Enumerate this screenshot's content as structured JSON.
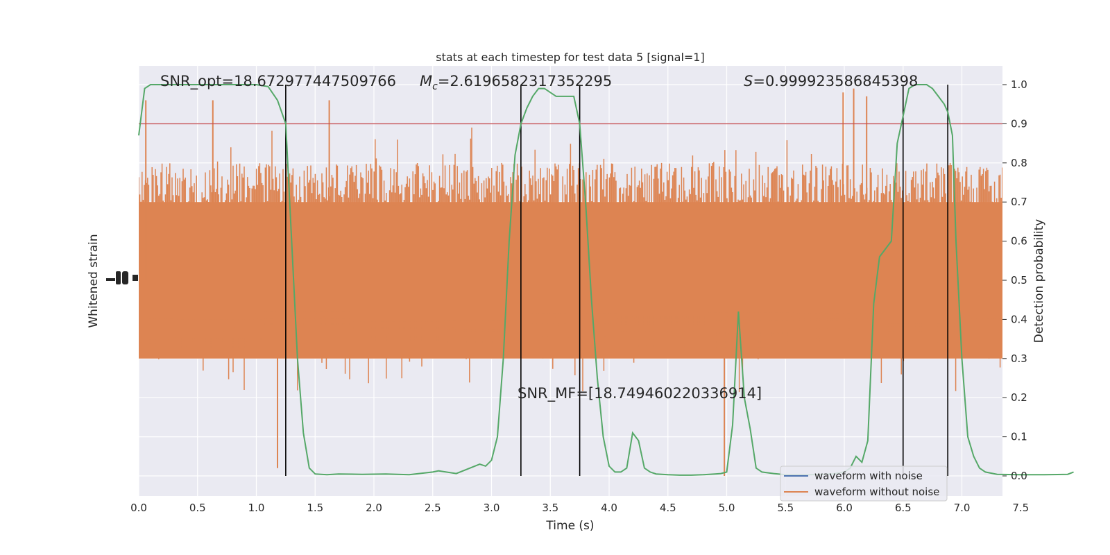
{
  "chart_data": {
    "type": "line",
    "title": "stats at each timestep for test data 5 [signal=1]",
    "xlabel": "Time (s)",
    "ylabel_left": "Whitened strain",
    "ylabel_right": "Detection probability",
    "xlim": [
      0,
      8
    ],
    "ylim_right": [
      -0.05,
      1.05
    ],
    "xticks": [
      "0.0",
      "0.5",
      "1.0",
      "1.5",
      "2.0",
      "2.5",
      "3.0",
      "3.5",
      "4.0",
      "4.5",
      "5.0",
      "5.5",
      "6.0",
      "6.5",
      "7.0",
      "7.5"
    ],
    "yticks_right": [
      "0.0",
      "0.1",
      "0.2",
      "0.3",
      "0.4",
      "0.5",
      "0.6",
      "0.7",
      "0.8",
      "0.9",
      "1.0"
    ],
    "annotations": {
      "snr_opt": "SNR_opt=18.672977447509766",
      "mc_symbol": "M",
      "mc_sub": "c",
      "mc_value": "=2.6196582317352295",
      "s_symbol": "S",
      "s_value": "=0.999923586845398",
      "snr_mf": "SNR_MF=[18.749460220336914]"
    },
    "threshold": 0.9,
    "vertical_lines": [
      1.25,
      3.25,
      3.75,
      6.5,
      6.88
    ],
    "legend": {
      "position": "lower-right",
      "entries": [
        "waveform with noise",
        "waveform without noise"
      ]
    },
    "series": [
      {
        "name": "waveform without noise",
        "kind": "strain",
        "noise_band_prob": [
          0.3,
          0.8
        ],
        "notable_spikes": [
          {
            "t": 0.06,
            "p": 0.96
          },
          {
            "t": 0.63,
            "p": 0.96
          },
          {
            "t": 1.18,
            "p": 0.02
          },
          {
            "t": 1.62,
            "p": 0.96
          },
          {
            "t": 4.98,
            "p": 0.0
          },
          {
            "t": 5.99,
            "p": 0.98
          },
          {
            "t": 6.08,
            "p": 0.99
          },
          {
            "t": 6.19,
            "p": 0.97
          }
        ]
      },
      {
        "name": "detection probability",
        "kind": "probability",
        "x": [
          0.0,
          0.05,
          0.1,
          0.2,
          0.3,
          0.5,
          0.7,
          0.9,
          1.0,
          1.1,
          1.18,
          1.25,
          1.3,
          1.35,
          1.4,
          1.45,
          1.5,
          1.6,
          1.7,
          1.9,
          2.1,
          2.3,
          2.5,
          2.55,
          2.7,
          2.9,
          2.95,
          3.0,
          3.05,
          3.1,
          3.15,
          3.2,
          3.25,
          3.3,
          3.35,
          3.4,
          3.45,
          3.5,
          3.55,
          3.6,
          3.65,
          3.7,
          3.75,
          3.8,
          3.85,
          3.9,
          3.95,
          4.0,
          4.05,
          4.1,
          4.15,
          4.2,
          4.25,
          4.3,
          4.35,
          4.4,
          4.5,
          4.6,
          4.7,
          4.8,
          4.9,
          4.95,
          5.0,
          5.05,
          5.1,
          5.15,
          5.2,
          5.25,
          5.3,
          5.35,
          5.4,
          5.5,
          5.7,
          5.9,
          6.0,
          6.05,
          6.1,
          6.15,
          6.2,
          6.25,
          6.3,
          6.35,
          6.4,
          6.45,
          6.5,
          6.55,
          6.6,
          6.65,
          6.7,
          6.75,
          6.8,
          6.85,
          6.88,
          6.92,
          6.95,
          7.0,
          7.05,
          7.1,
          7.15,
          7.2,
          7.3,
          7.5,
          7.7,
          7.9,
          7.95
        ],
        "y": [
          0.87,
          0.99,
          1.0,
          1.0,
          1.0,
          1.0,
          1.0,
          1.0,
          1.0,
          0.995,
          0.96,
          0.9,
          0.6,
          0.3,
          0.11,
          0.02,
          0.005,
          0.003,
          0.005,
          0.004,
          0.005,
          0.003,
          0.01,
          0.013,
          0.006,
          0.03,
          0.025,
          0.04,
          0.1,
          0.3,
          0.6,
          0.82,
          0.9,
          0.94,
          0.97,
          0.99,
          0.99,
          0.98,
          0.97,
          0.97,
          0.97,
          0.97,
          0.9,
          0.7,
          0.45,
          0.25,
          0.1,
          0.025,
          0.01,
          0.01,
          0.02,
          0.11,
          0.09,
          0.02,
          0.01,
          0.005,
          0.003,
          0.002,
          0.002,
          0.003,
          0.005,
          0.006,
          0.01,
          0.13,
          0.42,
          0.2,
          0.12,
          0.02,
          0.01,
          0.008,
          0.006,
          0.003,
          0.003,
          0.005,
          0.01,
          0.02,
          0.05,
          0.035,
          0.09,
          0.44,
          0.56,
          0.58,
          0.6,
          0.85,
          0.92,
          0.99,
          1.0,
          1.0,
          1.0,
          0.99,
          0.97,
          0.95,
          0.93,
          0.87,
          0.6,
          0.3,
          0.1,
          0.05,
          0.02,
          0.01,
          0.004,
          0.003,
          0.003,
          0.004,
          0.01
        ]
      }
    ]
  }
}
